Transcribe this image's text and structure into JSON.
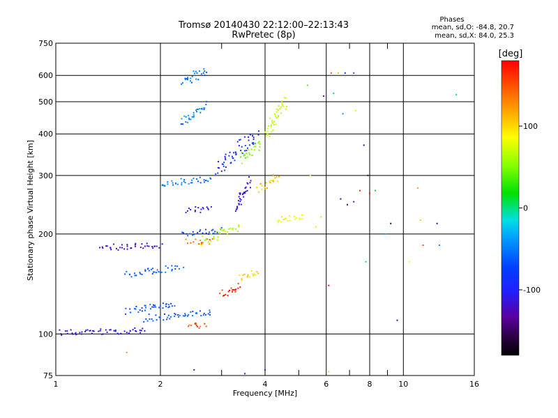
{
  "title": {
    "line1": "Tromsø 20140430 22:12:00–22:13:43",
    "line2": "RwPretec (8p)"
  },
  "phases_box": {
    "heading": "Phases",
    "o_line": "mean, sd,O: -84.8, 20.7",
    "x_line": "mean, sd,X: 84.0, 25.3"
  },
  "colorbar": {
    "label": "[deg]",
    "ticks": [
      "100",
      "0",
      "-100"
    ],
    "tick_values": [
      100,
      0,
      -100
    ],
    "range": [
      -180,
      180
    ]
  },
  "chart_data": {
    "type": "scatter",
    "title": "Tromsø 20140430 22:12:00–22:13:43",
    "subtitle": "RwPretec (8p)",
    "xlabel": "Frequency [MHz]",
    "ylabel": "Stationary phase Virtual Height [km]",
    "xscale": "log",
    "yscale": "log",
    "xlim": [
      1,
      16
    ],
    "ylim": [
      75,
      750
    ],
    "x_ticks": [
      1,
      2,
      4,
      6,
      8,
      10,
      16
    ],
    "x_tick_labels": [
      "1",
      "2",
      "4",
      "6",
      "8",
      "10",
      "16"
    ],
    "y_ticks": [
      75,
      100,
      200,
      300,
      400,
      500,
      600,
      750
    ],
    "y_tick_labels": [
      "75",
      "100",
      "200",
      "300",
      "400",
      "500",
      "600",
      "750"
    ],
    "x_minor_ticks": [
      3,
      5,
      7,
      9
    ],
    "grid": true,
    "color_by": "phase [deg]",
    "traces": [
      {
        "x0": 1.0,
        "x1": 1.8,
        "h0": 100,
        "h1": 103,
        "phase": -115
      },
      {
        "x0": 1.35,
        "x1": 2.0,
        "h0": 182,
        "h1": 185,
        "phase": -120
      },
      {
        "x0": 1.6,
        "x1": 2.3,
        "h0": 150,
        "h1": 160,
        "phase": -80
      },
      {
        "x0": 1.6,
        "x1": 2.2,
        "h0": 115,
        "h1": 125,
        "phase": -85
      },
      {
        "x0": 1.8,
        "x1": 2.8,
        "h0": 110,
        "h1": 118,
        "phase": -80
      },
      {
        "x0": 2.0,
        "x1": 2.8,
        "h0": 280,
        "h1": 295,
        "phase": -70
      },
      {
        "x0": 2.3,
        "x1": 2.7,
        "h0": 560,
        "h1": 630,
        "phase": -75
      },
      {
        "x0": 2.3,
        "x1": 2.7,
        "h0": 420,
        "h1": 500,
        "phase": -70
      },
      {
        "x0": 2.3,
        "x1": 3.0,
        "h0": 200,
        "h1": 205,
        "phase": -90
      },
      {
        "x0": 2.4,
        "x1": 2.8,
        "h0": 235,
        "h1": 240,
        "phase": -110
      },
      {
        "x0": 2.9,
        "x1": 3.8,
        "h0": 300,
        "h1": 420,
        "phase": -100
      },
      {
        "x0": 3.3,
        "x1": 3.6,
        "h0": 230,
        "h1": 300,
        "phase": -120
      },
      {
        "x0": 3.4,
        "x1": 3.9,
        "h0": 330,
        "h1": 380,
        "phase": 40
      },
      {
        "x0": 3.8,
        "x1": 4.4,
        "h0": 270,
        "h1": 300,
        "phase": 120
      },
      {
        "x0": 4.0,
        "x1": 4.6,
        "h0": 380,
        "h1": 520,
        "phase": 70
      },
      {
        "x0": 2.6,
        "x1": 3.4,
        "h0": 185,
        "h1": 215,
        "phase": 60
      },
      {
        "x0": 2.4,
        "x1": 2.8,
        "h0": 190,
        "h1": 190,
        "phase": 150
      },
      {
        "x0": 2.4,
        "x1": 2.7,
        "h0": 106,
        "h1": 106,
        "phase": 160
      },
      {
        "x0": 3.0,
        "x1": 3.4,
        "h0": 130,
        "h1": 140,
        "phase": 170
      },
      {
        "x0": 3.4,
        "x1": 3.8,
        "h0": 145,
        "h1": 155,
        "phase": 120
      },
      {
        "x0": 4.3,
        "x1": 5.2,
        "h0": 220,
        "h1": 225,
        "phase": 100
      }
    ],
    "isolated_points": [
      {
        "x": 5.3,
        "h": 560,
        "phase": 30
      },
      {
        "x": 5.9,
        "h": 520,
        "phase": -130
      },
      {
        "x": 6.2,
        "h": 610,
        "phase": 160
      },
      {
        "x": 6.5,
        "h": 610,
        "phase": 130
      },
      {
        "x": 6.8,
        "h": 610,
        "phase": -100
      },
      {
        "x": 7.2,
        "h": 610,
        "phase": -90
      },
      {
        "x": 6.3,
        "h": 530,
        "phase": -20
      },
      {
        "x": 6.7,
        "h": 460,
        "phase": -60
      },
      {
        "x": 7.3,
        "h": 470,
        "phase": 90
      },
      {
        "x": 7.7,
        "h": 370,
        "phase": -150
      },
      {
        "x": 7.9,
        "h": 300,
        "phase": -150
      },
      {
        "x": 7.5,
        "h": 270,
        "phase": 170
      },
      {
        "x": 8.0,
        "h": 265,
        "phase": 175
      },
      {
        "x": 8.3,
        "h": 270,
        "phase": -10
      },
      {
        "x": 6.6,
        "h": 255,
        "phase": -150
      },
      {
        "x": 6.9,
        "h": 245,
        "phase": -140
      },
      {
        "x": 7.2,
        "h": 250,
        "phase": -130
      },
      {
        "x": 9.2,
        "h": 215,
        "phase": -170
      },
      {
        "x": 8.9,
        "h": 200,
        "phase": -50
      },
      {
        "x": 9.6,
        "h": 110,
        "phase": -140
      },
      {
        "x": 10.4,
        "h": 165,
        "phase": 100
      },
      {
        "x": 11.0,
        "h": 275,
        "phase": 140
      },
      {
        "x": 11.2,
        "h": 220,
        "phase": 120
      },
      {
        "x": 11.4,
        "h": 185,
        "phase": 160
      },
      {
        "x": 12.5,
        "h": 215,
        "phase": -150
      },
      {
        "x": 12.7,
        "h": 185,
        "phase": -60
      },
      {
        "x": 14.2,
        "h": 525,
        "phase": -30
      },
      {
        "x": 6.1,
        "h": 77,
        "phase": 120
      },
      {
        "x": 6.1,
        "h": 140,
        "phase": 180
      },
      {
        "x": 5.8,
        "h": 225,
        "phase": 60
      },
      {
        "x": 5.6,
        "h": 210,
        "phase": 110
      },
      {
        "x": 5.4,
        "h": 300,
        "phase": 90
      },
      {
        "x": 7.8,
        "h": 165,
        "phase": -30
      },
      {
        "x": 1.6,
        "h": 88,
        "phase": 140
      },
      {
        "x": 2.5,
        "h": 78,
        "phase": -140
      },
      {
        "x": 3.5,
        "h": 76,
        "phase": -120
      },
      {
        "x": 4.0,
        "h": 78,
        "phase": -100
      }
    ]
  }
}
